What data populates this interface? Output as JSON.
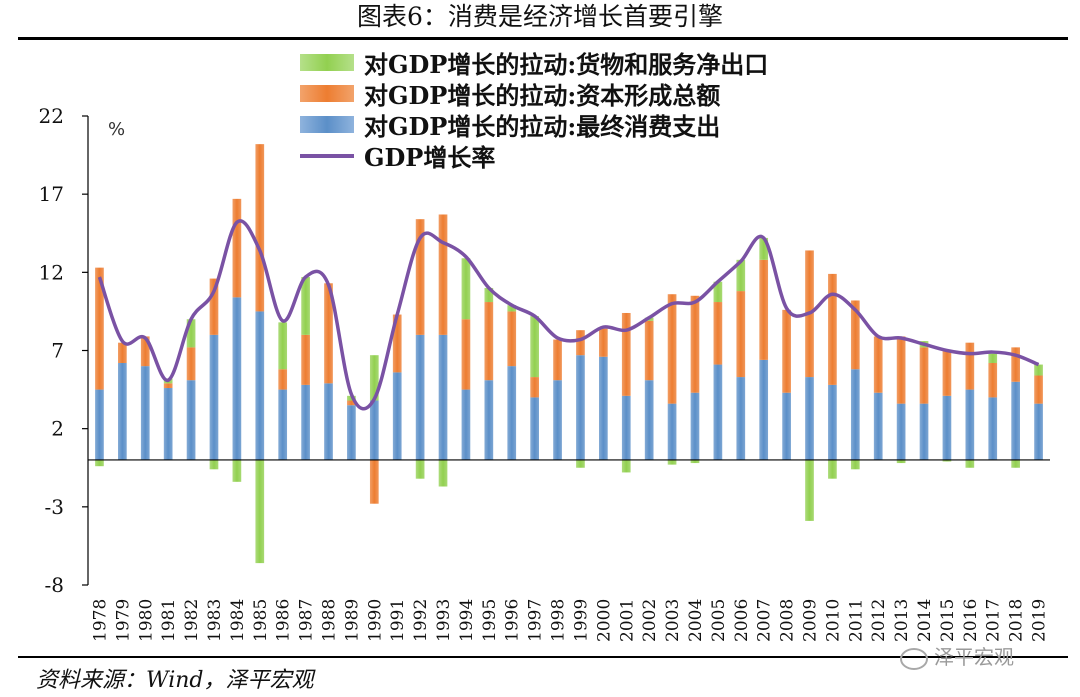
{
  "page": {
    "title": "图表6：消费是经济增长首要引擎",
    "source": "资料来源：Wind，泽平宏观",
    "watermark": "泽平宏观"
  },
  "legend": [
    {
      "label": "对GDP增长的拉动:货物和服务净出口",
      "series": "net_exports",
      "type": "bar"
    },
    {
      "label": "对GDP增长的拉动:资本形成总额",
      "series": "capital",
      "type": "bar"
    },
    {
      "label": "对GDP增长的拉动:最终消费支出",
      "series": "consumption",
      "type": "bar"
    },
    {
      "label": "GDP增长率",
      "series": "gdp",
      "type": "line"
    }
  ],
  "colors": {
    "consumption": "#5b8fc8",
    "capital": "#ed7d31",
    "net_exports": "#92d050",
    "gdp_line": "#7a52a4",
    "axis": "#000000"
  },
  "chart_data": {
    "type": "bar",
    "stacked": true,
    "categories": [
      "1978",
      "1979",
      "1980",
      "1981",
      "1982",
      "1983",
      "1984",
      "1985",
      "1986",
      "1987",
      "1988",
      "1989",
      "1990",
      "1991",
      "1992",
      "1993",
      "1994",
      "1995",
      "1996",
      "1997",
      "1998",
      "1999",
      "2000",
      "2001",
      "2002",
      "2003",
      "2004",
      "2005",
      "2006",
      "2007",
      "2008",
      "2009",
      "2010",
      "2011",
      "2012",
      "2013",
      "2014",
      "2015",
      "2016",
      "2017",
      "2018",
      "2019"
    ],
    "series": [
      {
        "name": "对GDP增长的拉动:最终消费支出",
        "key": "consumption",
        "values": [
          4.5,
          6.2,
          6.0,
          4.6,
          5.1,
          8.0,
          10.4,
          9.5,
          4.5,
          4.8,
          4.9,
          3.5,
          3.8,
          5.6,
          8.0,
          8.0,
          4.5,
          5.1,
          6.0,
          4.0,
          5.1,
          6.7,
          6.6,
          4.1,
          5.1,
          3.6,
          4.3,
          6.1,
          5.3,
          6.4,
          4.3,
          5.3,
          4.8,
          5.8,
          4.3,
          3.6,
          3.6,
          4.1,
          4.5,
          4.0,
          5.0,
          3.6
        ]
      },
      {
        "name": "对GDP增长的拉动:资本形成总额",
        "key": "capital",
        "values": [
          7.8,
          1.3,
          1.9,
          0.3,
          2.1,
          3.6,
          6.3,
          10.7,
          1.3,
          3.2,
          6.4,
          0.3,
          -2.8,
          3.7,
          7.4,
          7.7,
          4.5,
          5.0,
          3.5,
          1.3,
          2.6,
          1.6,
          1.8,
          5.3,
          3.8,
          7.0,
          6.2,
          4.0,
          5.5,
          6.4,
          5.3,
          8.1,
          7.1,
          4.4,
          3.6,
          4.3,
          3.6,
          2.9,
          3.0,
          2.2,
          2.2,
          1.8
        ]
      },
      {
        "name": "对GDP增长的拉动:货物和服务净出口",
        "key": "net_exports",
        "values": [
          -0.4,
          0.0,
          0.0,
          0.3,
          1.8,
          -0.6,
          -1.4,
          -6.6,
          3.0,
          3.7,
          0.0,
          0.3,
          2.9,
          0.0,
          -1.2,
          -1.7,
          3.9,
          0.9,
          0.4,
          3.9,
          0.0,
          -0.5,
          0.0,
          -0.8,
          0.2,
          -0.3,
          -0.2,
          1.3,
          2.0,
          1.4,
          0.0,
          -3.9,
          -1.2,
          -0.6,
          0.0,
          -0.2,
          0.4,
          -0.1,
          -0.5,
          0.6,
          -0.5,
          0.7
        ]
      },
      {
        "name": "GDP增长率",
        "key": "gdp",
        "type": "line",
        "values": [
          11.7,
          7.6,
          7.8,
          5.1,
          9.0,
          10.8,
          15.2,
          13.4,
          8.9,
          11.7,
          11.2,
          4.2,
          3.9,
          9.3,
          14.2,
          13.9,
          13.0,
          11.0,
          9.9,
          9.2,
          7.8,
          7.7,
          8.5,
          8.3,
          9.1,
          10.0,
          10.1,
          11.4,
          12.7,
          14.2,
          9.7,
          9.4,
          10.6,
          9.6,
          7.9,
          7.8,
          7.4,
          7.0,
          6.8,
          6.9,
          6.7,
          6.1
        ]
      }
    ],
    "ylim": [
      -8,
      22
    ],
    "yticks": [
      -8,
      -3,
      2,
      7,
      12,
      17,
      22
    ],
    "ylabel": "%",
    "legend_position": "top-center",
    "grid": false
  }
}
